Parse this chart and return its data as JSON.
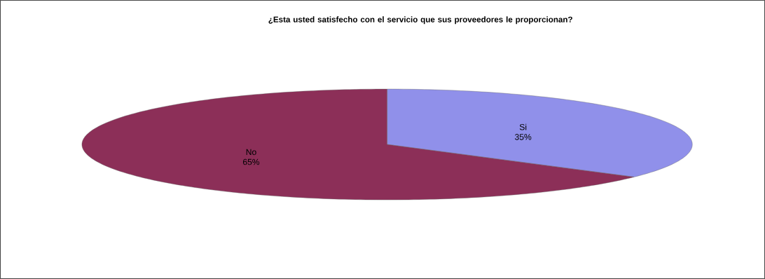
{
  "chart_data": {
    "type": "pie",
    "title": "¿Esta usted satisfecho con el servicio que sus proveedores le proporcionan?",
    "categories": [
      "Si",
      "No"
    ],
    "values": [
      35,
      65
    ],
    "value_labels": [
      "35%",
      "65%"
    ],
    "colors": [
      "#9090ea",
      "#8c2f58"
    ]
  }
}
